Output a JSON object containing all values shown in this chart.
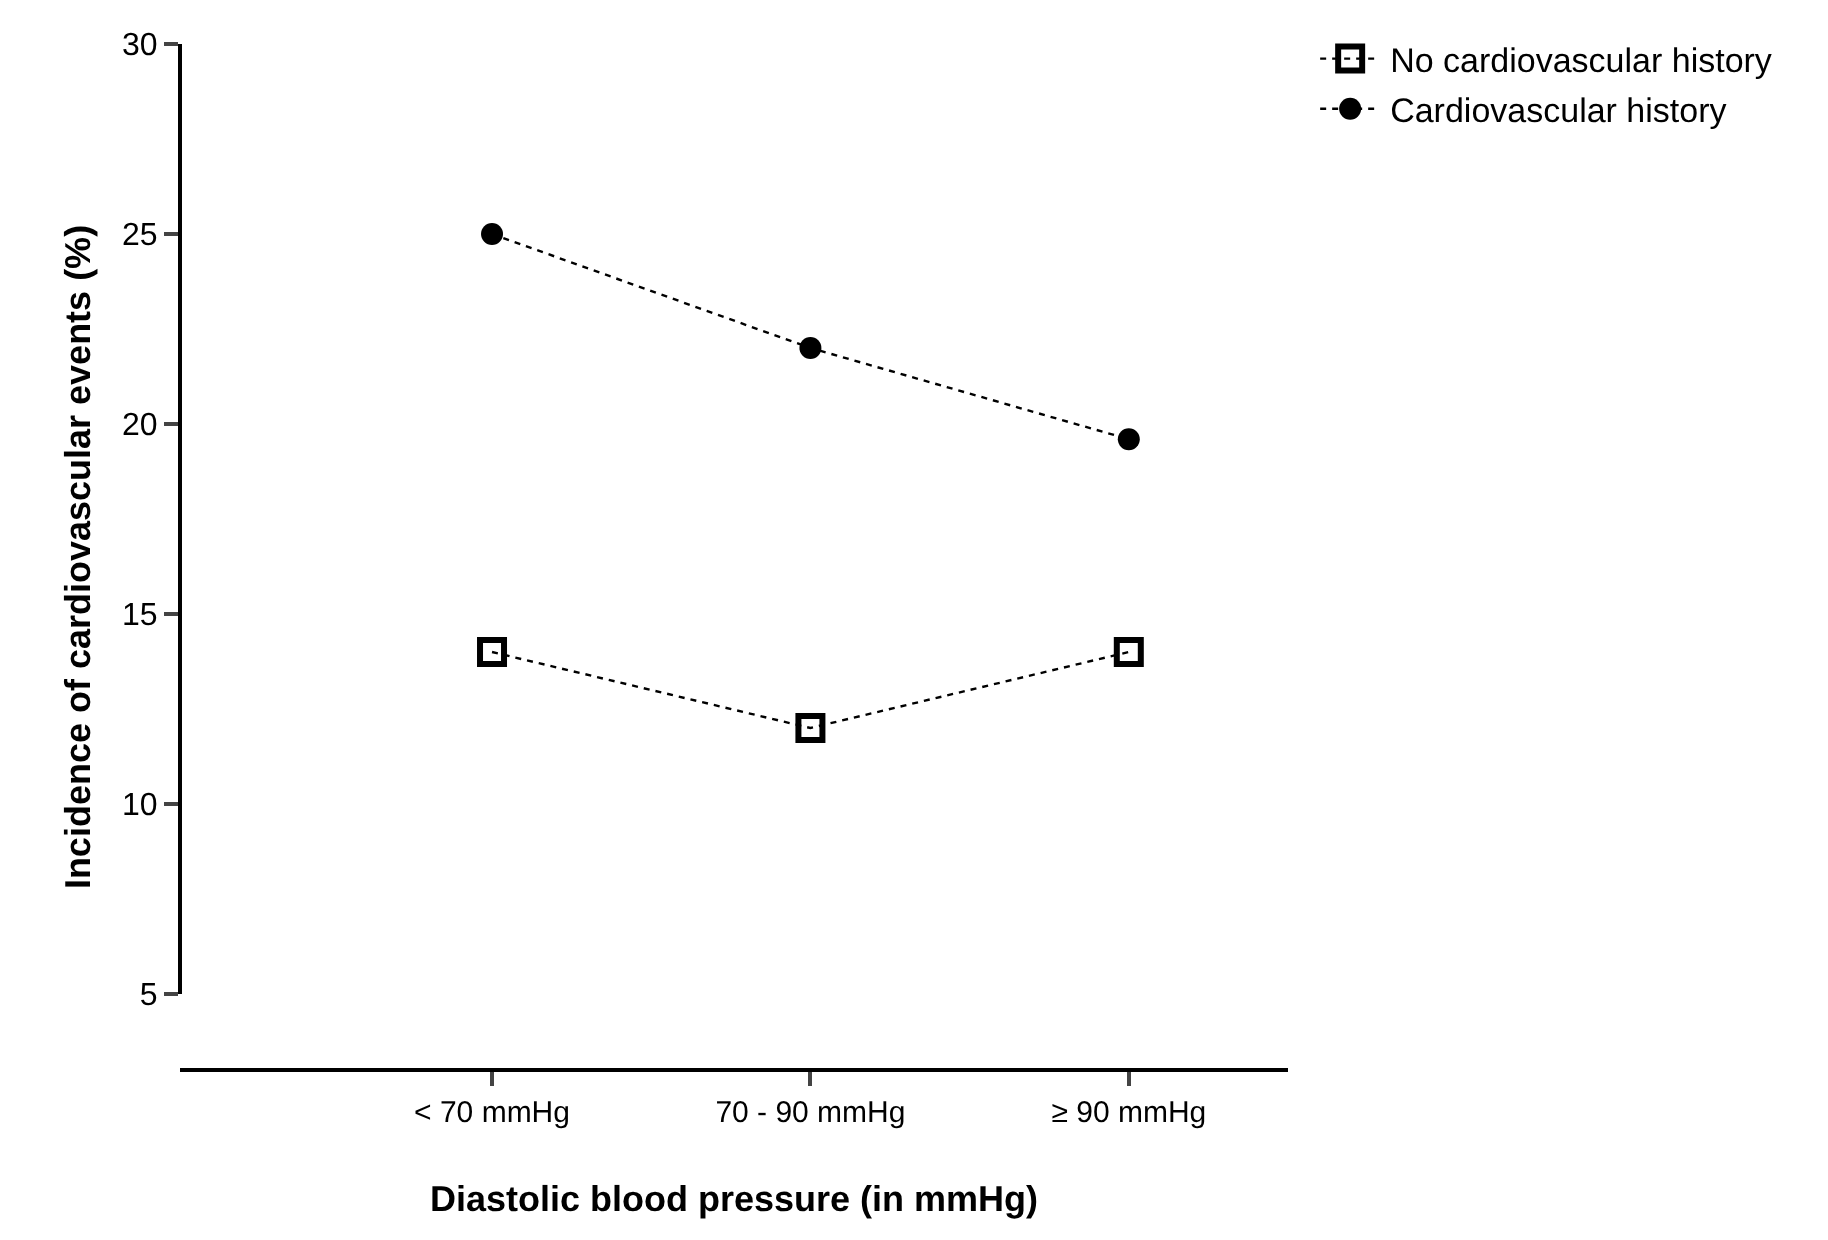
{
  "chart_data": {
    "type": "line",
    "xlabel": "Diastolic blood pressure (in mmHg)",
    "ylabel": "Incidence of cardiovascular events (%)",
    "categories": [
      "< 70 mmHg",
      "70 - 90 mmHg",
      "≥ 90 mmHg"
    ],
    "series": [
      {
        "name": "No cardiovascular history",
        "color": "#000000",
        "marker": "square",
        "values": [
          14,
          12,
          14
        ]
      },
      {
        "name": "Cardiovascular history",
        "color": "#000000",
        "marker": "circle",
        "values": [
          25,
          22,
          19.6
        ]
      }
    ],
    "ylim": [
      3,
      30
    ],
    "yticks": [
      5,
      10,
      15,
      20,
      25,
      30
    ],
    "legend": "top right",
    "line_style": "dotted"
  }
}
